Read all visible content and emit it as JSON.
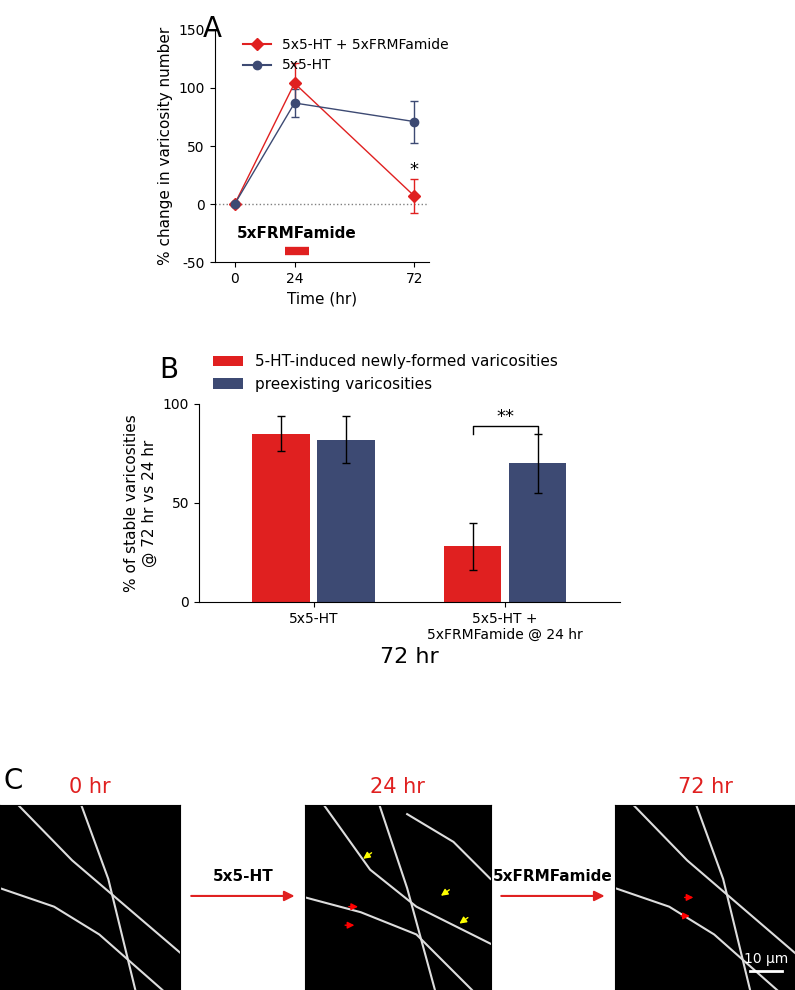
{
  "chart_data": [
    {
      "type": "line",
      "panel_label": "A",
      "x_label": "Time (hr)",
      "y_label": "% change in varicosity number",
      "x": [
        0,
        24,
        72
      ],
      "series": [
        {
          "name": "5x5-HT + 5xFRMFamide",
          "color": "#e02020",
          "marker": "diamond",
          "line_style": "solid",
          "values": [
            0,
            104,
            7
          ],
          "errors": [
            0,
            17,
            15
          ]
        },
        {
          "name": "5x5-HT",
          "color": "#3d4a73",
          "marker": "circle",
          "line_style": "solid",
          "values": [
            0,
            87,
            71
          ],
          "errors": [
            0,
            12,
            18
          ]
        }
      ],
      "xlim": [
        -8,
        78
      ],
      "xticks": [
        0,
        24,
        72
      ],
      "ylim": [
        -50,
        150
      ],
      "yticks": [
        -50,
        0,
        50,
        100,
        150
      ],
      "legend": "upper right",
      "treatment": {
        "label": "5xFRMFamide",
        "start": 20,
        "end": 30,
        "color": "#e02020"
      },
      "annotations": [
        {
          "text": "*",
          "x": 72,
          "series": 0
        }
      ]
    },
    {
      "type": "bar",
      "panel_label": "B",
      "x_label": "72 hr",
      "y_label": "% of stable varicosities\n@ 72 hr vs 24 hr",
      "categories": [
        "5x5-HT",
        "5x5-HT +\n5xFRMFamide @ 24 hr"
      ],
      "series": [
        {
          "name": "5-HT-induced newly-formed varicosities",
          "color": "#e02020",
          "values": [
            85,
            28
          ],
          "errors": [
            9,
            12
          ]
        },
        {
          "name": "preexisting varicosities",
          "color": "#3d4a73",
          "values": [
            82,
            70
          ],
          "errors": [
            12,
            15
          ]
        }
      ],
      "ylim": [
        0,
        100
      ],
      "yticks": [
        0,
        50,
        100
      ],
      "legend": "upper left",
      "annotations": [
        {
          "text": "**",
          "category": 1
        }
      ]
    }
  ],
  "images": {
    "panel_label": "C",
    "frames": [
      "0 hr",
      "24 hr",
      "72 hr"
    ],
    "steps": [
      "5x5-HT",
      "5xFRMFamide"
    ],
    "scale_bar": "10 µm"
  }
}
